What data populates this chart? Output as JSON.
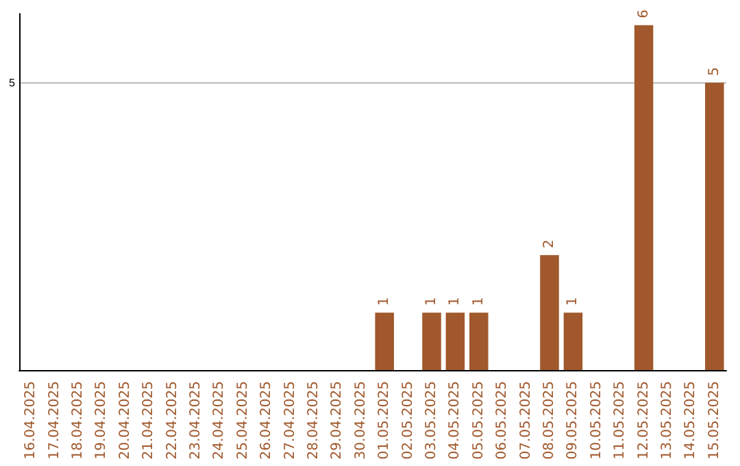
{
  "chart_data": {
    "type": "bar",
    "categories": [
      "16.04.2025",
      "17.04.2025",
      "18.04.2025",
      "19.04.2025",
      "20.04.2025",
      "21.04.2025",
      "22.04.2025",
      "23.04.2025",
      "24.04.2025",
      "25.04.2025",
      "26.04.2025",
      "27.04.2025",
      "28.04.2025",
      "29.04.2025",
      "30.04.2025",
      "01.05.2025",
      "02.05.2025",
      "03.05.2025",
      "04.05.2025",
      "05.05.2025",
      "06.05.2025",
      "07.05.2025",
      "08.05.2025",
      "09.05.2025",
      "10.05.2025",
      "11.05.2025",
      "12.05.2025",
      "13.05.2025",
      "14.05.2025",
      "15.05.2025"
    ],
    "values": [
      null,
      null,
      null,
      null,
      null,
      null,
      null,
      null,
      null,
      null,
      null,
      null,
      null,
      null,
      null,
      1,
      null,
      1,
      1,
      1,
      null,
      null,
      2,
      1,
      null,
      null,
      6,
      null,
      null,
      5
    ],
    "data_labels": true,
    "color": "#a0582c",
    "ylim": [
      0,
      6.2
    ],
    "yticks": [
      5
    ],
    "grid": "y"
  }
}
